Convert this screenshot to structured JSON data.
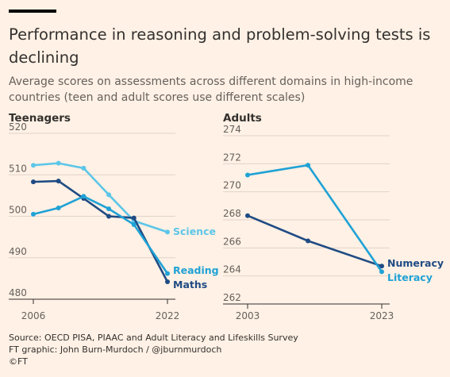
{
  "title": "Performance in reasoning and problem-solving tests is declining",
  "subtitle": "Average scores on assessments across different domains in high-income countries (teen and adult scores use different scales)",
  "footer": {
    "source": "Source: OECD PISA, PIAAC and Adult Literacy and Lifeskills Survey",
    "graphic": "FT graphic: John Burn-Murdoch / @jburnmurdoch",
    "copyright": "©FT"
  },
  "colors": {
    "background": "#fff1e5",
    "science": "#5cc6e8",
    "reading": "#1fa2d6",
    "maths": "#1f4b84",
    "numeracy": "#1f4b84",
    "literacy": "#1fa2d6"
  },
  "chart_data": [
    {
      "type": "line",
      "title": "Teenagers",
      "xlim": [
        2006,
        2022
      ],
      "ylim": [
        480,
        520
      ],
      "yticks": [
        480,
        490,
        500,
        510,
        520
      ],
      "xticks": [
        2006,
        2022
      ],
      "grid": true,
      "series": [
        {
          "name": "Science",
          "color": "#5cc6e8",
          "x": [
            2006,
            2009,
            2012,
            2015,
            2018,
            2022
          ],
          "y": [
            512.3,
            512.8,
            511.6,
            505.2,
            498.9,
            496.2
          ]
        },
        {
          "name": "Maths",
          "color": "#1f4b84",
          "x": [
            2006,
            2009,
            2012,
            2015,
            2018,
            2022
          ],
          "y": [
            508.3,
            508.5,
            504.3,
            500.0,
            499.6,
            484.2
          ]
        },
        {
          "name": "Reading",
          "color": "#1fa2d6",
          "x": [
            2006,
            2009,
            2012,
            2015,
            2018,
            2022
          ],
          "y": [
            500.5,
            502.0,
            504.8,
            501.8,
            498.0,
            486.2
          ]
        }
      ]
    },
    {
      "type": "line",
      "title": "Adults",
      "xlim": [
        2003,
        2023
      ],
      "ylim": [
        262,
        274
      ],
      "yticks": [
        262,
        264,
        266,
        268,
        270,
        272,
        274
      ],
      "xticks": [
        2003,
        2023
      ],
      "grid": true,
      "series": [
        {
          "name": "Numeracy",
          "color": "#1f4b84",
          "x": [
            2003,
            2012,
            2023
          ],
          "y": [
            268.3,
            266.5,
            264.7
          ]
        },
        {
          "name": "Literacy",
          "color": "#1fa2d6",
          "x": [
            2003,
            2012,
            2023
          ],
          "y": [
            271.2,
            271.9,
            264.3
          ]
        }
      ]
    }
  ]
}
